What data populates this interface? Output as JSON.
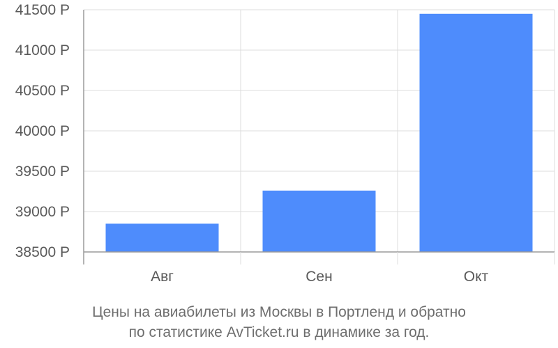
{
  "chart_data": {
    "type": "bar",
    "categories": [
      "Авг",
      "Сен",
      "Окт"
    ],
    "values": [
      38850,
      39260,
      41450
    ],
    "y_ticks": [
      38500,
      39000,
      39500,
      40000,
      40500,
      41000,
      41500
    ],
    "y_tick_labels": [
      "38500 Р",
      "39000 Р",
      "39500 Р",
      "40000 Р",
      "40500 Р",
      "41000 Р",
      "41500 Р"
    ],
    "ylim": [
      38500,
      41500
    ],
    "grid": true,
    "bar_color": "#4e8cfc",
    "caption": [
      "Цены на авиабилеты из Москвы в Портленд и обратно",
      "по статистике AvTicket.ru в динамике за год."
    ]
  }
}
